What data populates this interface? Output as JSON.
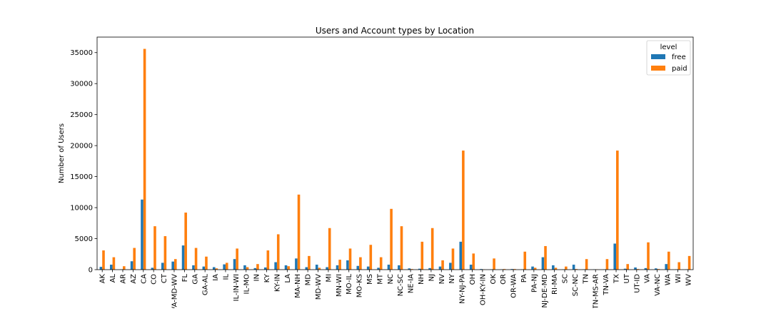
{
  "chart_data": {
    "type": "bar",
    "title": "Users and Account types by Location",
    "xlabel": "",
    "ylabel": "Number of Users",
    "ylim": [
      0,
      37500
    ],
    "yticks": [
      0,
      5000,
      10000,
      15000,
      20000,
      25000,
      30000,
      35000
    ],
    "grid": false,
    "legend": {
      "title": "level",
      "placement": "top-right"
    },
    "categories": [
      "AK",
      "AL",
      "AR",
      "AZ",
      "CA",
      "CO",
      "CT",
      "DC-VA-MD-WV",
      "FL",
      "GA",
      "GA-AL",
      "IA",
      "IL",
      "IL-IN-WI",
      "IL-MO",
      "IN",
      "KY",
      "KY-IN",
      "LA",
      "MA-NH",
      "MD",
      "MD-WV",
      "MI",
      "MN-WI",
      "MO-IL",
      "MO-KS",
      "MS",
      "MT",
      "NC",
      "NC-SC",
      "NE-IA",
      "NH",
      "NJ",
      "NV",
      "NY",
      "NY-NJ-PA",
      "OH",
      "OH-KY-IN",
      "OK",
      "OR",
      "OR-WA",
      "PA",
      "PA-NJ",
      "PA-NJ-DE-MD",
      "RI-MA",
      "SC",
      "SC-NC",
      "TN",
      "TN-MS-AR",
      "TN-VA",
      "TX",
      "UT",
      "UT-ID",
      "VA",
      "VA-NC",
      "WA",
      "WI",
      "WV"
    ],
    "series": [
      {
        "name": "free",
        "color": "#1f77b4",
        "values": [
          450,
          800,
          50,
          1350,
          11300,
          300,
          1100,
          1300,
          3900,
          700,
          500,
          400,
          850,
          1700,
          700,
          250,
          350,
          1200,
          700,
          1800,
          400,
          800,
          400,
          700,
          1500,
          600,
          500,
          300,
          800,
          700,
          200,
          150,
          250,
          500,
          1100,
          4500,
          800,
          100,
          50,
          50,
          100,
          50,
          500,
          2000,
          700,
          50,
          800,
          50,
          50,
          50,
          4200,
          150,
          350,
          250,
          200,
          900,
          50,
          50
        ]
      },
      {
        "name": "paid",
        "color": "#ff7f0e",
        "values": [
          3100,
          2000,
          550,
          3500,
          35600,
          7000,
          5400,
          1700,
          9200,
          3500,
          2100,
          200,
          1100,
          3400,
          400,
          900,
          3100,
          5700,
          550,
          12100,
          2200,
          300,
          6700,
          1600,
          3400,
          2000,
          4000,
          2000,
          9800,
          7000,
          100,
          4500,
          6700,
          1500,
          3400,
          19200,
          2600,
          50,
          1800,
          100,
          100,
          2900,
          300,
          3800,
          300,
          500,
          100,
          1700,
          50,
          1700,
          19200,
          900,
          100,
          4400,
          100,
          2900,
          1200,
          2200
        ]
      }
    ]
  }
}
